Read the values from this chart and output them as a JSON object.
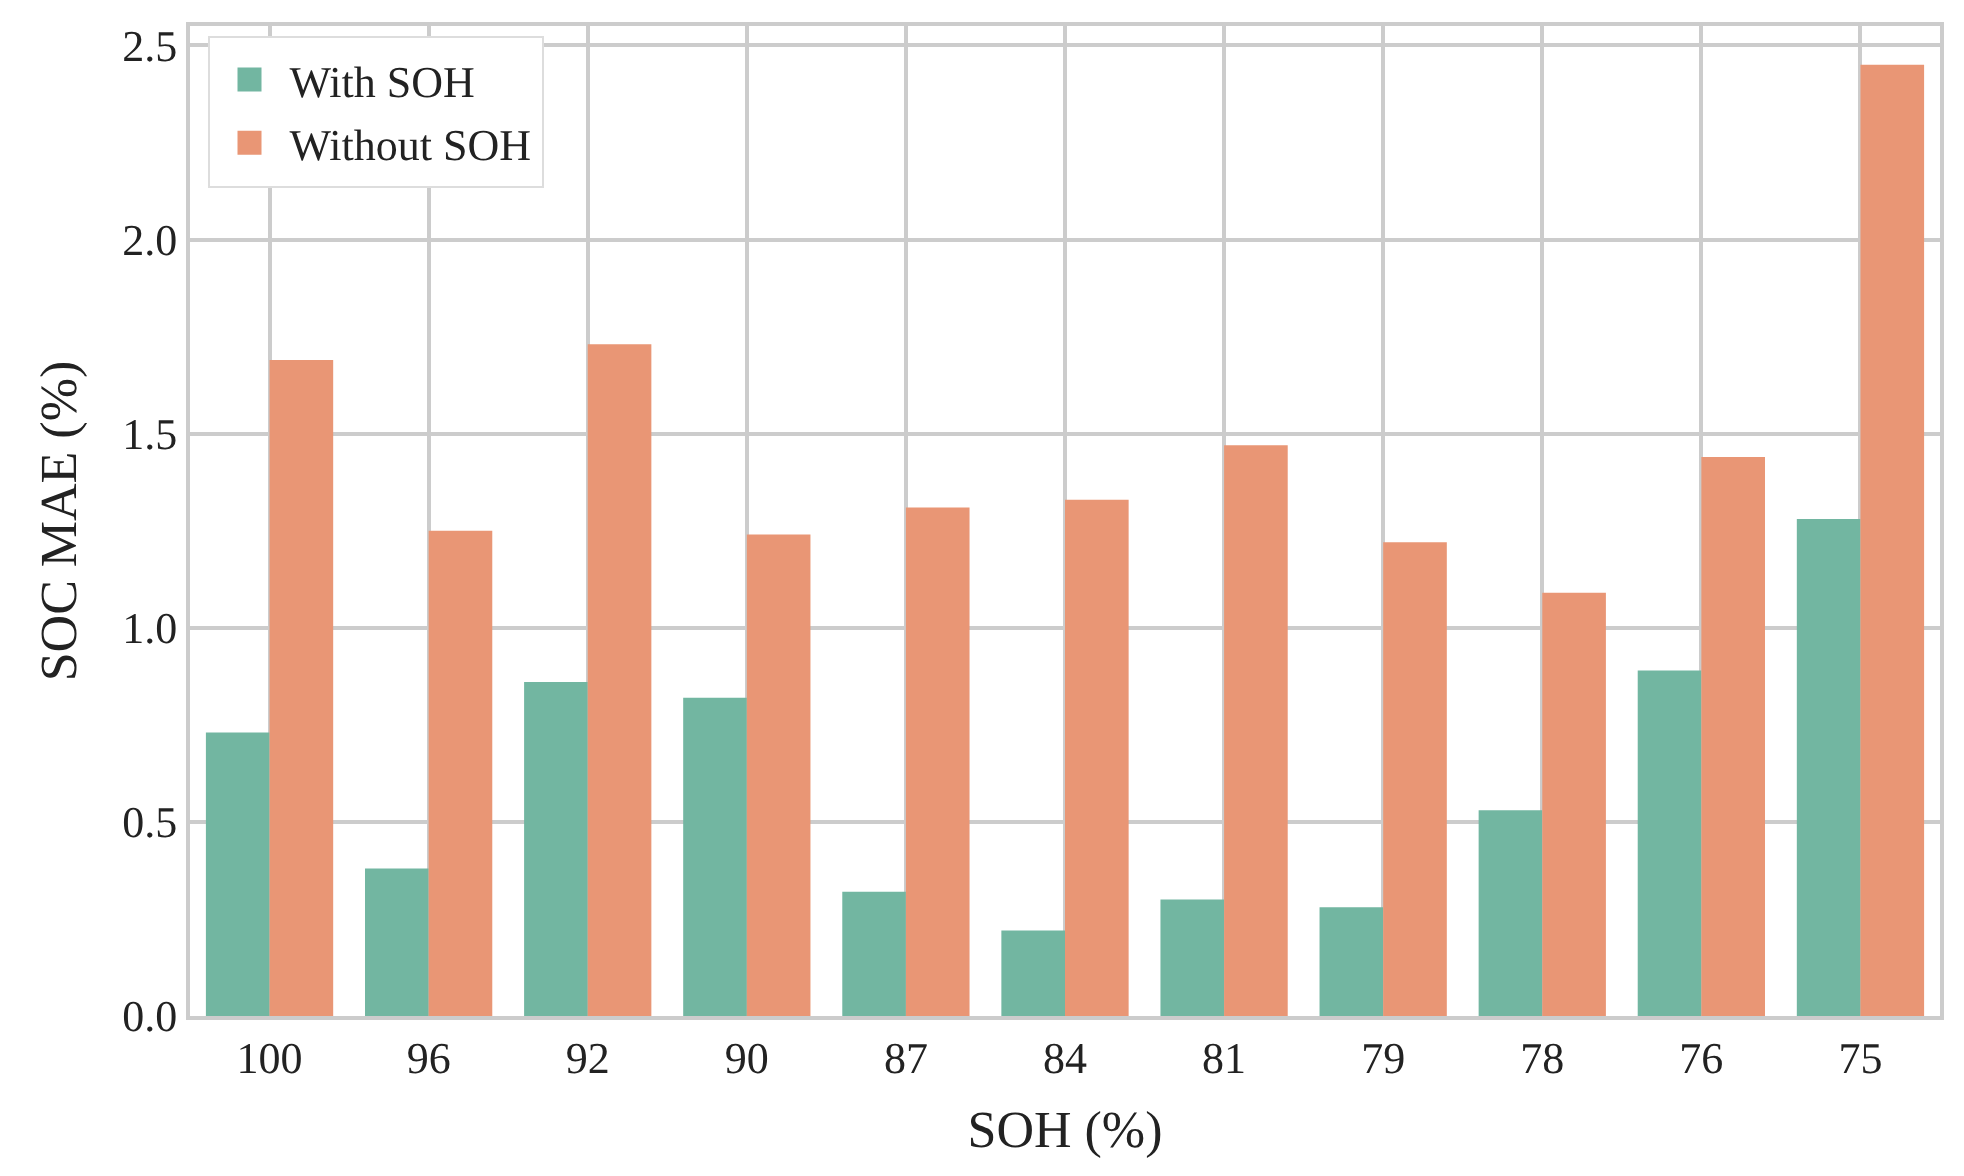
{
  "chart_data": {
    "type": "bar",
    "xlabel": "SOH (%)",
    "ylabel": "SOC MAE (%)",
    "categories": [
      "100",
      "96",
      "92",
      "90",
      "87",
      "84",
      "81",
      "79",
      "78",
      "76",
      "75"
    ],
    "series": [
      {
        "name": "With SOH",
        "color": "#72b6a1",
        "values": [
          0.73,
          0.38,
          0.86,
          0.82,
          0.32,
          0.22,
          0.3,
          0.28,
          0.53,
          0.89,
          1.28
        ]
      },
      {
        "name": "Without SOH",
        "color": "#e99675",
        "values": [
          1.69,
          1.25,
          1.73,
          1.24,
          1.31,
          1.33,
          1.47,
          1.22,
          1.09,
          1.44,
          2.45
        ]
      }
    ],
    "ylim": [
      0,
      2.55
    ],
    "yticks": [
      {
        "value": 0,
        "label": "0.0"
      },
      {
        "value": 0.5,
        "label": "0.5"
      },
      {
        "value": 1,
        "label": "1.0"
      },
      {
        "value": 1.5,
        "label": "1.5"
      },
      {
        "value": 2,
        "label": "2.0"
      },
      {
        "value": 2.5,
        "label": "2.5"
      }
    ],
    "grid": true,
    "legend": "top left"
  }
}
